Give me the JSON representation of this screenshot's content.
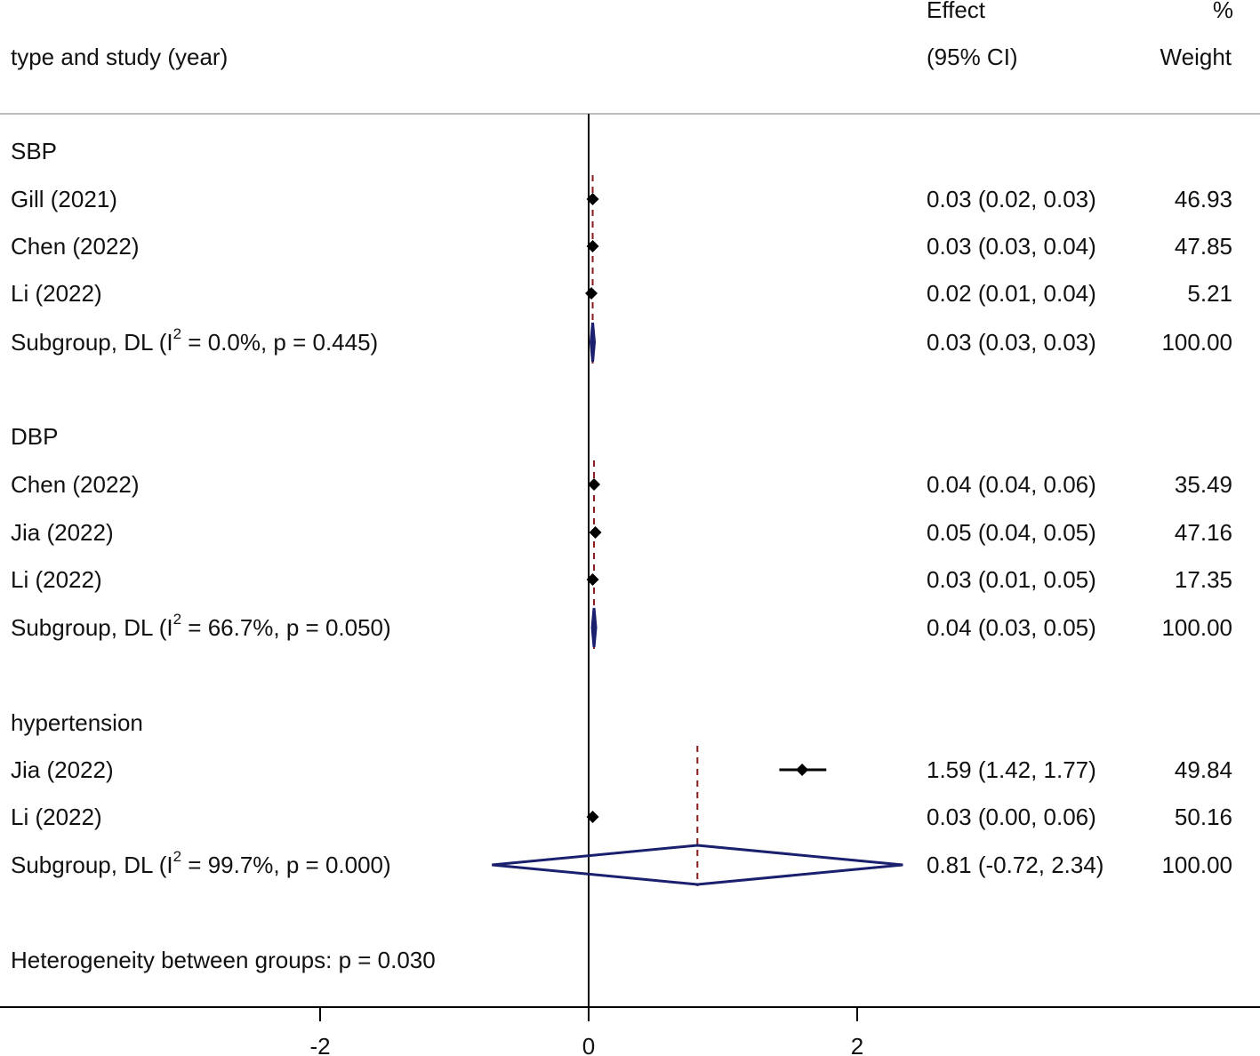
{
  "header": {
    "label_col": "type and study (year)",
    "effect_top": "Effect",
    "effect_bottom": "(95% CI)",
    "weight_top": "%",
    "weight_bottom": "Weight"
  },
  "chart_data": {
    "type": "forest",
    "xlim": [
      -4,
      5
    ],
    "xticks": [
      -2,
      0,
      2
    ],
    "null_line": 0,
    "rows": [
      {
        "kind": "group",
        "label": "SBP"
      },
      {
        "kind": "study",
        "label": "Gill (2021)",
        "est": 0.03,
        "lo": 0.02,
        "hi": 0.03,
        "ci_text": "0.03 (0.02, 0.03)",
        "weight": "46.93"
      },
      {
        "kind": "study",
        "label": "Chen (2022)",
        "est": 0.03,
        "lo": 0.03,
        "hi": 0.04,
        "ci_text": "0.03 (0.03, 0.04)",
        "weight": "47.85"
      },
      {
        "kind": "study",
        "label": "Li (2022)",
        "est": 0.02,
        "lo": 0.01,
        "hi": 0.04,
        "ci_text": "0.02 (0.01, 0.04)",
        "weight": "5.21"
      },
      {
        "kind": "subgroup",
        "label_pre": "Subgroup, DL (I",
        "sup": "2",
        "label_post": " = 0.0%, p = 0.445)",
        "est": 0.03,
        "lo": 0.03,
        "hi": 0.03,
        "ci_text": "0.03 (0.03, 0.03)",
        "weight": "100.00"
      },
      {
        "kind": "group",
        "label": "DBP"
      },
      {
        "kind": "study",
        "label": "Chen (2022)",
        "est": 0.04,
        "lo": 0.04,
        "hi": 0.06,
        "ci_text": "0.04 (0.04, 0.06)",
        "weight": "35.49"
      },
      {
        "kind": "study",
        "label": "Jia (2022)",
        "est": 0.05,
        "lo": 0.04,
        "hi": 0.05,
        "ci_text": "0.05 (0.04, 0.05)",
        "weight": "47.16"
      },
      {
        "kind": "study",
        "label": "Li (2022)",
        "est": 0.03,
        "lo": 0.01,
        "hi": 0.05,
        "ci_text": "0.03 (0.01, 0.05)",
        "weight": "17.35"
      },
      {
        "kind": "subgroup",
        "label_pre": "Subgroup, DL (I",
        "sup": "2",
        "label_post": " = 66.7%, p = 0.050)",
        "est": 0.04,
        "lo": 0.03,
        "hi": 0.05,
        "ci_text": "0.04 (0.03, 0.05)",
        "weight": "100.00"
      },
      {
        "kind": "group",
        "label": "hypertension"
      },
      {
        "kind": "study",
        "label": "Jia (2022)",
        "est": 1.59,
        "lo": 1.42,
        "hi": 1.77,
        "ci_text": "1.59 (1.42, 1.77)",
        "weight": "49.84"
      },
      {
        "kind": "study",
        "label": "Li (2022)",
        "est": 0.03,
        "lo": 0.0,
        "hi": 0.06,
        "ci_text": "0.03 (0.00, 0.06)",
        "weight": "50.16"
      },
      {
        "kind": "subgroup",
        "label_pre": "Subgroup, DL (I",
        "sup": "2",
        "label_post": " = 99.7%, p = 0.000)",
        "est": 0.81,
        "lo": -0.72,
        "hi": 2.34,
        "ci_text": "0.81 (-0.72, 2.34)",
        "weight": "100.00"
      },
      {
        "kind": "note",
        "label": "Heterogeneity between groups: p = 0.030"
      }
    ]
  },
  "colors": {
    "diamond": "#1a1f6e",
    "dashed": "#8b1a1a",
    "marker": "#000000",
    "rule": "#bbbbbb",
    "axis": "#000000"
  }
}
